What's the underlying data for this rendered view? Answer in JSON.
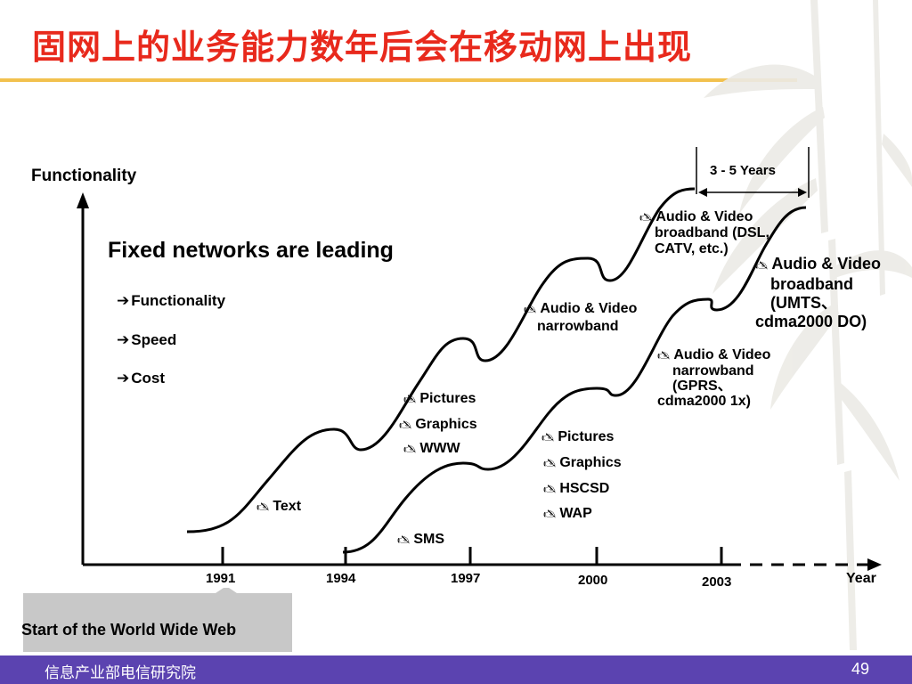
{
  "slide": {
    "title": "固网上的业务能力数年后会在移动网上出现",
    "page_number": "49",
    "organization": "信息产业部电信研究院"
  },
  "diagram": {
    "y_axis_label": "Functionality",
    "x_axis_label": "Year",
    "years": [
      "1991",
      "1994",
      "1997",
      "2000",
      "2003"
    ],
    "gap_label": "3 - 5 Years",
    "headline": "Fixed networks are leading",
    "bullets": [
      "Functionality",
      "Speed",
      "Cost"
    ],
    "bullet_glyph": "➔",
    "item_glyph": "🖎",
    "fixed_items": {
      "text": "Text",
      "pictures": "Pictures",
      "graphics": "Graphics",
      "www": "WWW",
      "av_narrow": "Audio & Video",
      "av_narrow_2": "narrowband",
      "av_broad": "Audio & Video",
      "av_broad_2": "broadband (DSL,",
      "av_broad_3": "CATV, etc.)"
    },
    "mobile_items": {
      "sms": "SMS",
      "pictures": "Pictures",
      "graphics": "Graphics",
      "hscsd": "HSCSD",
      "wap": "WAP",
      "av_narrow": "Audio & Video",
      "av_narrow_2": "narrowband",
      "av_narrow_3": "(GPRS、",
      "av_narrow_4": "cdma2000 1x)",
      "av_broad": "Audio & Video",
      "av_broad_2": "broadband",
      "av_broad_3": "(UMTS、",
      "av_broad_4": "cdma2000 DO)"
    },
    "callout": "Start of the World Wide Web"
  },
  "colors": {
    "title": "#e8291c",
    "title_rule": "#f2c14e",
    "footer": "#5b43b0",
    "callout_tab": "#c8c8c8",
    "line": "#000000"
  }
}
